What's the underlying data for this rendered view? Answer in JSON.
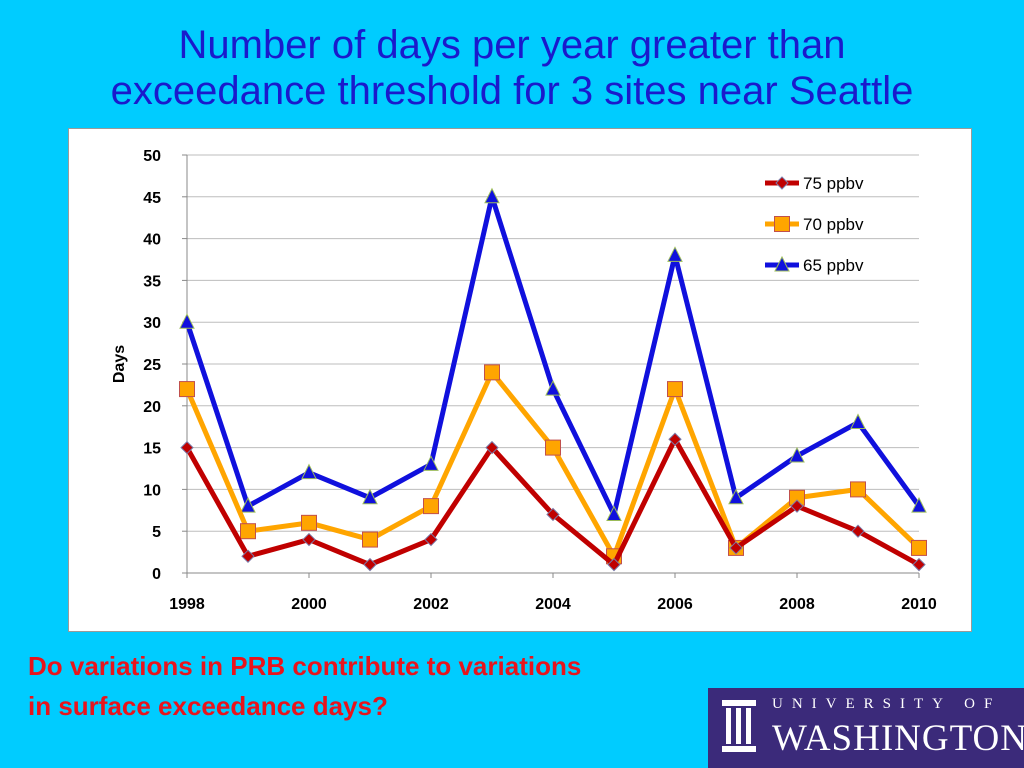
{
  "slide": {
    "title_lines": [
      "Number of days per year greater than",
      "exceedance threshold for 3 sites near Seattle"
    ],
    "question_lines": [
      "Do variations in PRB contribute to variations",
      "in surface exceedance days?"
    ],
    "logo": {
      "line1": "UNIVERSITY OF",
      "line2": "WASHINGTON"
    },
    "colors": {
      "background": "#00ccff",
      "title": "#1a1acc",
      "question": "#e8141c",
      "logo_bg": "#3b2a7a"
    }
  },
  "chart_data": {
    "type": "line",
    "title": "",
    "xlabel": "",
    "ylabel": "Days",
    "x": [
      1998,
      1999,
      2000,
      2001,
      2002,
      2003,
      2004,
      2005,
      2006,
      2007,
      2008,
      2009,
      2010
    ],
    "xlim": [
      1998,
      2010
    ],
    "xticks": [
      "1998",
      "2000",
      "2002",
      "2004",
      "2006",
      "2008",
      "2010"
    ],
    "ylim": [
      0,
      50
    ],
    "yticks": [
      "0",
      "5",
      "10",
      "15",
      "20",
      "25",
      "30",
      "35",
      "40",
      "45",
      "50"
    ],
    "grid": "horizontal",
    "legend_position": "top-right",
    "series": [
      {
        "name": "75 ppbv",
        "color": "#c00000",
        "marker": "diamond",
        "values": [
          15,
          2,
          4,
          1,
          4,
          15,
          7,
          1,
          16,
          3,
          8,
          5,
          1
        ]
      },
      {
        "name": "70 ppbv",
        "color": "#ffa500",
        "marker": "square",
        "values": [
          22,
          5,
          6,
          4,
          8,
          24,
          15,
          2,
          22,
          3,
          9,
          10,
          3
        ]
      },
      {
        "name": "65 ppbv",
        "color": "#1010dd",
        "marker": "triangle",
        "values": [
          30,
          8,
          12,
          9,
          13,
          45,
          22,
          7,
          38,
          9,
          14,
          18,
          8
        ]
      }
    ]
  }
}
